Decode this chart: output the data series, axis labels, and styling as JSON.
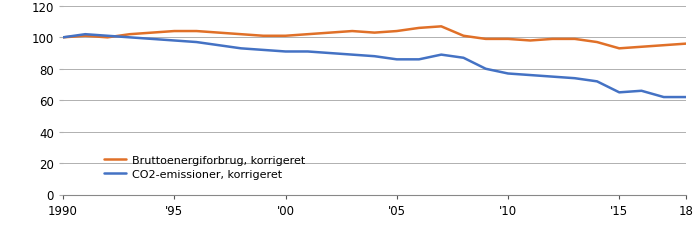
{
  "years": [
    1990,
    1991,
    1992,
    1993,
    1994,
    1995,
    1996,
    1997,
    1998,
    1999,
    2000,
    2001,
    2002,
    2003,
    2004,
    2005,
    2006,
    2007,
    2008,
    2009,
    2010,
    2011,
    2012,
    2013,
    2014,
    2015,
    2016,
    2017,
    2018
  ],
  "brutto": [
    100,
    101,
    100,
    102,
    103,
    104,
    104,
    103,
    102,
    101,
    101,
    102,
    103,
    104,
    103,
    104,
    106,
    107,
    101,
    99,
    99,
    98,
    99,
    99,
    97,
    93,
    94,
    95,
    96
  ],
  "co2": [
    100,
    102,
    101,
    100,
    99,
    98,
    97,
    95,
    93,
    92,
    91,
    91,
    90,
    89,
    88,
    86,
    86,
    89,
    87,
    80,
    77,
    76,
    75,
    74,
    72,
    65,
    66,
    62,
    62
  ],
  "brutto_color": "#e07028",
  "co2_color": "#4472c4",
  "ylim": [
    0,
    120
  ],
  "yticks": [
    0,
    20,
    40,
    60,
    80,
    100,
    120
  ],
  "xticks": [
    1990,
    1995,
    2000,
    2005,
    2010,
    2015,
    2018
  ],
  "xticklabels": [
    "1990",
    "'95",
    "'00",
    "'05",
    "'10",
    "'15",
    "18"
  ],
  "legend_label_brutto": "Bruttoenergiforbrug, korrigeret",
  "legend_label_co2": "CO2-emissioner, korrigeret",
  "grid_color": "#b0b0b0",
  "background_color": "#ffffff",
  "line_width": 1.8
}
